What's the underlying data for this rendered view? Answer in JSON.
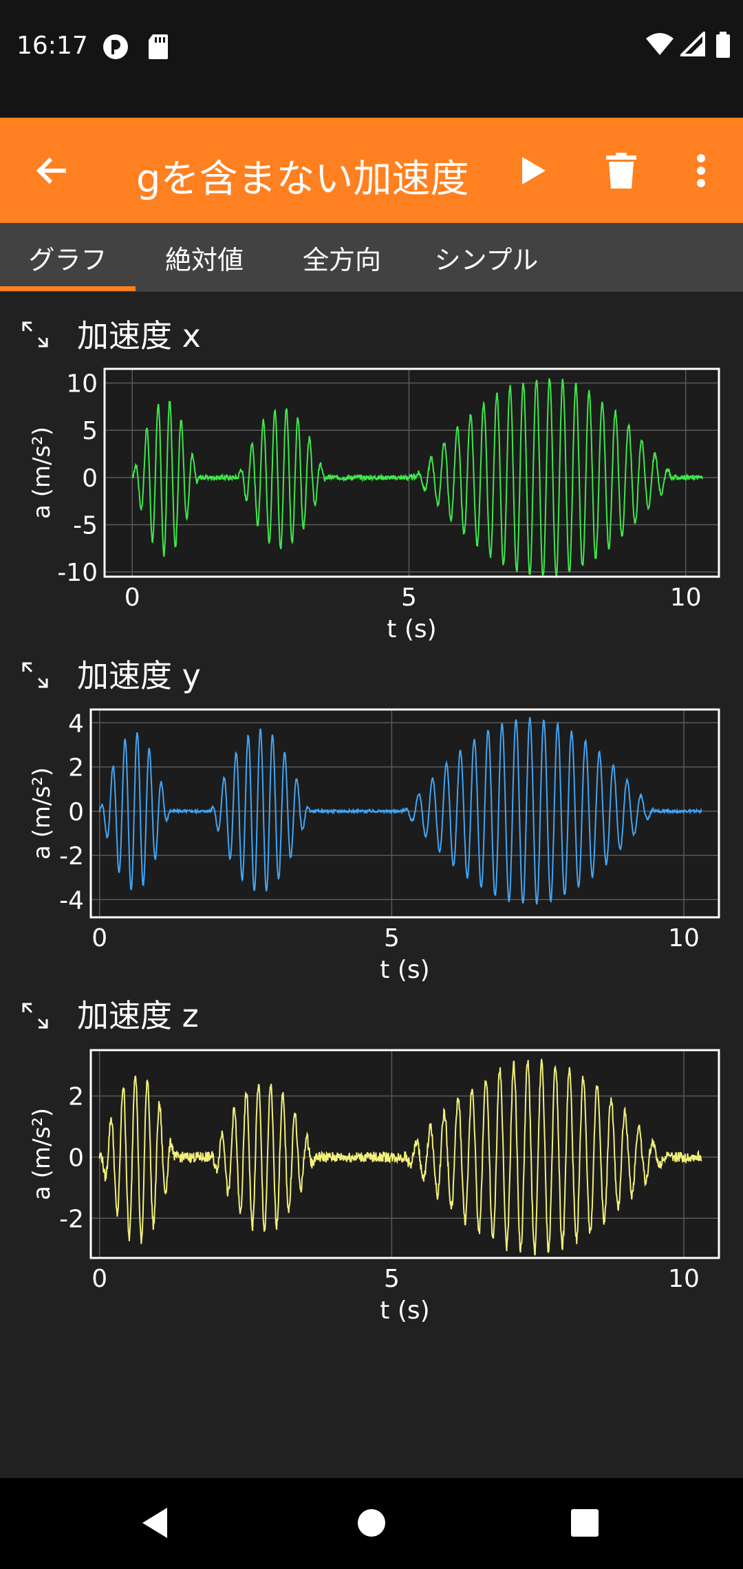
{
  "status": {
    "time": "16:17"
  },
  "header": {
    "title": "gを含まない加速度"
  },
  "tabs": [
    {
      "label": "グラフ",
      "active": true
    },
    {
      "label": "絶対値"
    },
    {
      "label": "全方向"
    },
    {
      "label": "シンプル"
    }
  ],
  "colors": {
    "accent": "#ff8020",
    "x": "#3ee84a",
    "y": "#42a5f5",
    "z": "#f2f07a"
  },
  "icons": [
    "back-arrow-icon",
    "play-icon",
    "delete-icon",
    "more-vert-icon",
    "expand-icon",
    "triangle-back-icon",
    "circle-home-icon",
    "square-recents-icon"
  ],
  "graphs": [
    {
      "title": "加速度 x"
    },
    {
      "title": "加速度 y"
    },
    {
      "title": "加速度 z"
    }
  ],
  "chart_data": [
    {
      "type": "line",
      "title": "加速度 x",
      "xlabel": "t (s)",
      "ylabel": "a (m/s²)",
      "xlim": [
        -0.5,
        10.6
      ],
      "ylim": [
        -10.5,
        11.5
      ],
      "xticks": [
        0,
        5,
        10
      ],
      "yticks": [
        10,
        5,
        0,
        -5,
        -10
      ],
      "xtick_labels": [
        "0",
        "5",
        "10"
      ],
      "ytick_labels": [
        "10",
        "5",
        "0",
        "-5",
        "-10"
      ],
      "grid": true,
      "color": "#3ee84a",
      "series": [
        {
          "bursts": [
            {
              "t0": 0.0,
              "t1": 1.2,
              "amp": 8.2,
              "freq": 4.8,
              "center": 0.5
            },
            {
              "t0": 1.9,
              "t1": 3.5,
              "amp": 7.5,
              "freq": 4.8,
              "center": 2.8
            },
            {
              "t0": 5.1,
              "t1": 9.8,
              "amp": 10.5,
              "freq": 4.2,
              "center": 7.0
            }
          ]
        }
      ]
    },
    {
      "type": "line",
      "title": "加速度 y",
      "xlabel": "t (s)",
      "ylabel": "a (m/s²)",
      "xlim": [
        -0.15,
        10.6
      ],
      "ylim": [
        -4.8,
        4.6
      ],
      "xticks": [
        0,
        5,
        10
      ],
      "yticks": [
        4,
        2,
        0,
        -2,
        -4
      ],
      "xtick_labels": [
        "0",
        "5",
        "10"
      ],
      "ytick_labels": [
        "4",
        "2",
        "0",
        "-2",
        "-4"
      ],
      "grid": true,
      "color": "#42a5f5",
      "series": [
        {
          "bursts": [
            {
              "t0": 0.0,
              "t1": 1.2,
              "amp": 3.6,
              "freq": 4.8,
              "center": 0.5
            },
            {
              "t0": 1.9,
              "t1": 3.6,
              "amp": 3.7,
              "freq": 4.8,
              "center": 2.7
            },
            {
              "t0": 5.2,
              "t1": 9.5,
              "amp": 4.2,
              "freq": 4.2,
              "center": 7.0
            }
          ]
        }
      ]
    },
    {
      "type": "line",
      "title": "加速度 z",
      "xlabel": "t (s)",
      "ylabel": "a (m/s²)",
      "xlim": [
        -0.15,
        10.6
      ],
      "ylim": [
        -3.3,
        3.5
      ],
      "xticks": [
        0,
        5,
        10
      ],
      "yticks": [
        2,
        0,
        -2
      ],
      "xtick_labels": [
        "0",
        "5",
        "10"
      ],
      "ytick_labels": [
        "2",
        "0",
        "-2"
      ],
      "grid": true,
      "color": "#f2f07a",
      "series": [
        {
          "bursts": [
            {
              "t0": 0.0,
              "t1": 1.3,
              "amp": 2.8,
              "freq": 4.8,
              "center": 0.5
            },
            {
              "t0": 1.9,
              "t1": 3.7,
              "amp": 2.4,
              "freq": 4.8,
              "center": 2.7
            },
            {
              "t0": 5.2,
              "t1": 9.7,
              "amp": 3.1,
              "freq": 4.2,
              "center": 7.0
            }
          ]
        }
      ]
    }
  ]
}
